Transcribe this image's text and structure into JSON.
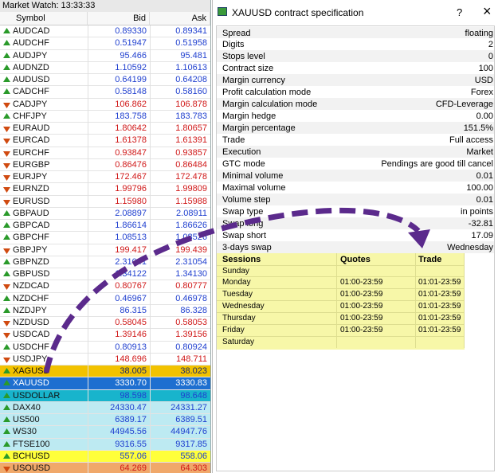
{
  "market_watch": {
    "title": "Market Watch: 13:33:33",
    "columns": [
      "Symbol",
      "Bid",
      "Ask"
    ],
    "rows": [
      {
        "symbol": "AUDCAD",
        "bid": "0.89330",
        "ask": "0.89341",
        "color": "#1f3fcf"
      },
      {
        "symbol": "AUDCHF",
        "bid": "0.51947",
        "ask": "0.51958",
        "color": "#1f3fcf"
      },
      {
        "symbol": "AUDJPY",
        "bid": "95.466",
        "ask": "95.481",
        "color": "#1f3fcf"
      },
      {
        "symbol": "AUDNZD",
        "bid": "1.10592",
        "ask": "1.10613",
        "color": "#1f3fcf"
      },
      {
        "symbol": "AUDUSD",
        "bid": "0.64199",
        "ask": "0.64208",
        "color": "#1f3fcf"
      },
      {
        "symbol": "CADCHF",
        "bid": "0.58148",
        "ask": "0.58160",
        "color": "#1f3fcf"
      },
      {
        "symbol": "CADJPY",
        "bid": "106.862",
        "ask": "106.878",
        "color": "#d01818"
      },
      {
        "symbol": "CHFJPY",
        "bid": "183.758",
        "ask": "183.783",
        "color": "#1f3fcf"
      },
      {
        "symbol": "EURAUD",
        "bid": "1.80642",
        "ask": "1.80657",
        "color": "#d01818"
      },
      {
        "symbol": "EURCAD",
        "bid": "1.61378",
        "ask": "1.61391",
        "color": "#d01818"
      },
      {
        "symbol": "EURCHF",
        "bid": "0.93847",
        "ask": "0.93857",
        "color": "#d01818"
      },
      {
        "symbol": "EURGBP",
        "bid": "0.86476",
        "ask": "0.86484",
        "color": "#d01818"
      },
      {
        "symbol": "EURJPY",
        "bid": "172.467",
        "ask": "172.478",
        "color": "#d01818"
      },
      {
        "symbol": "EURNZD",
        "bid": "1.99796",
        "ask": "1.99809",
        "color": "#d01818"
      },
      {
        "symbol": "EURUSD",
        "bid": "1.15980",
        "ask": "1.15988",
        "color": "#d01818"
      },
      {
        "symbol": "GBPAUD",
        "bid": "2.08897",
        "ask": "2.08911",
        "color": "#1f3fcf"
      },
      {
        "symbol": "GBPCAD",
        "bid": "1.86614",
        "ask": "1.86626",
        "color": "#1f3fcf"
      },
      {
        "symbol": "GBPCHF",
        "bid": "1.08513",
        "ask": "1.08526",
        "color": "#1f3fcf"
      },
      {
        "symbol": "GBPJPY",
        "bid": "199.417",
        "ask": "199.439",
        "color": "#d01818"
      },
      {
        "symbol": "GBPNZD",
        "bid": "2.31041",
        "ask": "2.31054",
        "color": "#1f3fcf"
      },
      {
        "symbol": "GBPUSD",
        "bid": "1.34122",
        "ask": "1.34130",
        "color": "#1f3fcf"
      },
      {
        "symbol": "NZDCAD",
        "bid": "0.80767",
        "ask": "0.80777",
        "color": "#d01818"
      },
      {
        "symbol": "NZDCHF",
        "bid": "0.46967",
        "ask": "0.46978",
        "color": "#1f3fcf"
      },
      {
        "symbol": "NZDJPY",
        "bid": "86.315",
        "ask": "86.328",
        "color": "#1f3fcf"
      },
      {
        "symbol": "NZDUSD",
        "bid": "0.58045",
        "ask": "0.58053",
        "color": "#d01818"
      },
      {
        "symbol": "USDCAD",
        "bid": "1.39146",
        "ask": "1.39156",
        "color": "#d01818"
      },
      {
        "symbol": "USDCHF",
        "bid": "0.80913",
        "ask": "0.80924",
        "color": "#1f3fcf"
      },
      {
        "symbol": "USDJPY",
        "bid": "148.696",
        "ask": "148.711",
        "color": "#d01818"
      },
      {
        "symbol": "XAGUSD",
        "bid": "38.005",
        "ask": "38.023",
        "color": "#1a2a6a",
        "background": "#f2c200"
      },
      {
        "symbol": "XAUUSD",
        "bid": "3330.70",
        "ask": "3330.83",
        "color": "#ffffff",
        "background": "#1e6fd0"
      },
      {
        "symbol": "USDOLLAR",
        "bid": "98.598",
        "ask": "98.648",
        "color": "#1f3fcf",
        "background": "#18b4cc"
      },
      {
        "symbol": "DAX40",
        "bid": "24330.47",
        "ask": "24331.27",
        "color": "#1f3fcf",
        "background": "#bdeaf2"
      },
      {
        "symbol": "US500",
        "bid": "6389.17",
        "ask": "6389.51",
        "color": "#1f3fcf",
        "background": "#bdeaf2"
      },
      {
        "symbol": "WS30",
        "bid": "44945.56",
        "ask": "44947.76",
        "color": "#1f3fcf",
        "background": "#bdeaf2"
      },
      {
        "symbol": "FTSE100",
        "bid": "9316.55",
        "ask": "9317.85",
        "color": "#1f3fcf",
        "background": "#bdeaf2"
      },
      {
        "symbol": "BCHUSD",
        "bid": "557.06",
        "ask": "558.06",
        "color": "#1f3fcf",
        "background": "#ffff3a"
      },
      {
        "symbol": "USOUSD",
        "bid": "64.269",
        "ask": "64.303",
        "color": "#d01818",
        "background": "#f0a86a"
      }
    ]
  },
  "dialog": {
    "title": "XAUUSD contract specification",
    "help": "?",
    "close": "×",
    "spec": [
      [
        "Spread",
        "floating"
      ],
      [
        "Digits",
        "2"
      ],
      [
        "Stops level",
        "0"
      ],
      [
        "Contract size",
        "100"
      ],
      [
        "Margin currency",
        "USD"
      ],
      [
        "Profit calculation mode",
        "Forex"
      ],
      [
        "Margin calculation mode",
        "CFD-Leverage"
      ],
      [
        "Margin hedge",
        "0.00"
      ],
      [
        "Margin percentage",
        "151.5%"
      ],
      [
        "Trade",
        "Full access"
      ],
      [
        "Execution",
        "Market"
      ],
      [
        "GTC mode",
        "Pendings are good till cancel"
      ],
      [
        "Minimal volume",
        "0.01"
      ],
      [
        "Maximal volume",
        "100.00"
      ],
      [
        "Volume step",
        "0.01"
      ],
      [
        "Swap type",
        "in points"
      ],
      [
        "Swap long",
        "-32.81"
      ],
      [
        "Swap short",
        "17.09"
      ],
      [
        "3-days swap",
        "Wednesday"
      ]
    ],
    "sessions": {
      "columns": [
        "Sessions",
        "Quotes",
        "Trade"
      ],
      "rows": [
        [
          "Sunday"
        ],
        [
          "Monday",
          "01:00-23:59",
          "01:01-23:59"
        ],
        [
          "Tuesday",
          "01:00-23:59",
          "01:01-23:59"
        ],
        [
          "Wednesday",
          "01:00-23:59",
          "01:01-23:59"
        ],
        [
          "Thursday",
          "01:00-23:59",
          "01:01-23:59"
        ],
        [
          "Friday",
          "01:00-23:59",
          "01:01-23:59"
        ],
        [
          "Saturday"
        ]
      ]
    }
  }
}
